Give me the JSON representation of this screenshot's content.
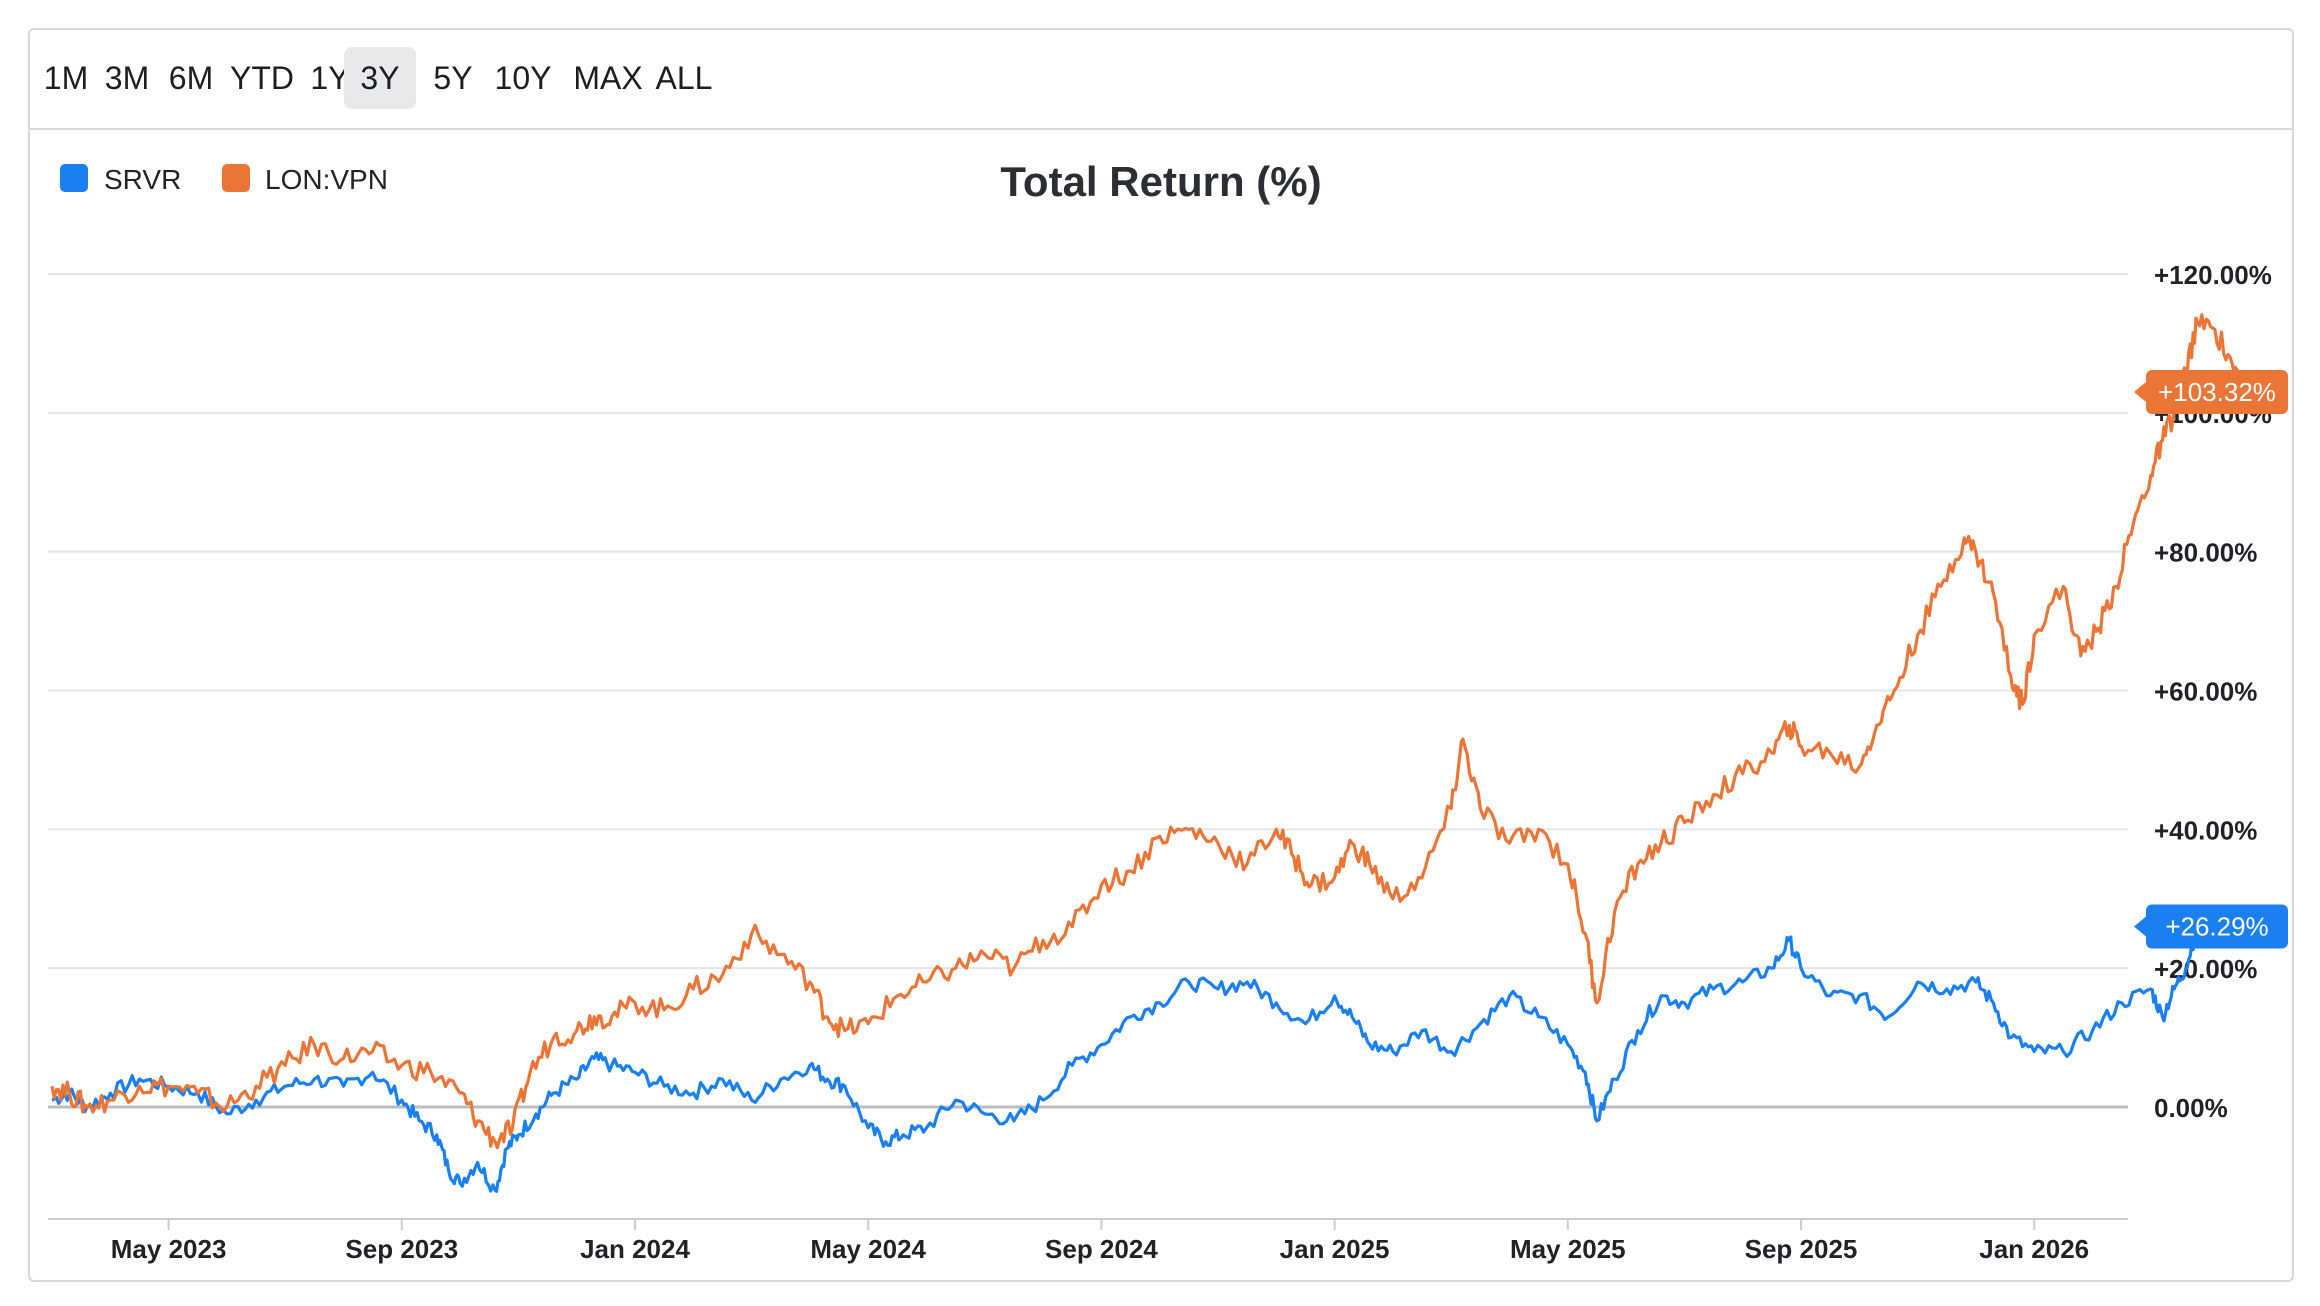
{
  "toolbar": {
    "ranges": [
      "1M",
      "3M",
      "6M",
      "YTD",
      "1Y",
      "3Y",
      "5Y",
      "10Y",
      "MAX",
      "ALL"
    ],
    "selected": "3Y"
  },
  "colors": {
    "srvr": "#1a7ff0",
    "vpn": "#eb7537",
    "grid": "#e3e5e8",
    "zero": "#b9bcc1"
  },
  "chart_data": {
    "type": "line",
    "title": "Total Return (%)",
    "xlabel": "",
    "ylabel": "",
    "ylim": [
      -16,
      122
    ],
    "y_ticks": [
      0,
      20,
      40,
      60,
      80,
      100,
      120
    ],
    "y_tick_labels": [
      "0.00%",
      "+20.00%",
      "+40.00%",
      "+60.00%",
      "+80.00%",
      "+100.00%",
      "+120.00%"
    ],
    "x_tick_labels": [
      "May 2023",
      "Sep 2023",
      "Jan 2024",
      "May 2024",
      "Sep 2024",
      "Jan 2025",
      "May 2025",
      "Sep 2025",
      "Jan 2026"
    ],
    "x_tick_months": [
      2,
      6,
      10,
      14,
      18,
      22,
      26,
      30,
      34
    ],
    "x_range_months": [
      -0.05,
      36.8
    ],
    "legend_position": "top-left",
    "series": [
      {
        "name": "SRVR",
        "color": "#1a7ff0",
        "end_label": "+26.29%",
        "points": [
          [
            0,
            1
          ],
          [
            0.3,
            2
          ],
          [
            0.6,
            0
          ],
          [
            1,
            2
          ],
          [
            1.5,
            4
          ],
          [
            2,
            3
          ],
          [
            2.5,
            2
          ],
          [
            3,
            -1
          ],
          [
            3.5,
            1
          ],
          [
            4,
            3
          ],
          [
            4.5,
            4
          ],
          [
            5,
            3
          ],
          [
            5.5,
            5
          ],
          [
            6,
            1
          ],
          [
            6.3,
            -2
          ],
          [
            6.6,
            -4
          ],
          [
            6.8,
            -9
          ],
          [
            7,
            -11
          ],
          [
            7.3,
            -8
          ],
          [
            7.6,
            -12
          ],
          [
            7.8,
            -6
          ],
          [
            8,
            -4
          ],
          [
            8.3,
            -1
          ],
          [
            8.6,
            2
          ],
          [
            9,
            4
          ],
          [
            9.3,
            7
          ],
          [
            9.6,
            6
          ],
          [
            10,
            5
          ],
          [
            10.5,
            3
          ],
          [
            11,
            2
          ],
          [
            11.5,
            4
          ],
          [
            12,
            1
          ],
          [
            12.5,
            4
          ],
          [
            13,
            6
          ],
          [
            13.3,
            4
          ],
          [
            13.6,
            3
          ],
          [
            14,
            -3
          ],
          [
            14.3,
            -5
          ],
          [
            14.6,
            -4
          ],
          [
            15,
            -3
          ],
          [
            15.5,
            1
          ],
          [
            16,
            -1
          ],
          [
            16.5,
            -2
          ],
          [
            17,
            1
          ],
          [
            17.5,
            6
          ],
          [
            18,
            9
          ],
          [
            18.5,
            13
          ],
          [
            19,
            15
          ],
          [
            19.5,
            18
          ],
          [
            20,
            17
          ],
          [
            20.5,
            18
          ],
          [
            21,
            15
          ],
          [
            21.5,
            12
          ],
          [
            22,
            16
          ],
          [
            22.3,
            13
          ],
          [
            22.6,
            9
          ],
          [
            23,
            8
          ],
          [
            23.5,
            11
          ],
          [
            24,
            8
          ],
          [
            24.5,
            12
          ],
          [
            25,
            16
          ],
          [
            25.5,
            13
          ],
          [
            26,
            9
          ],
          [
            26.3,
            5
          ],
          [
            26.5,
            -2
          ],
          [
            26.8,
            4
          ],
          [
            27.2,
            11
          ],
          [
            27.6,
            16
          ],
          [
            28,
            15
          ],
          [
            28.5,
            17
          ],
          [
            29,
            18
          ],
          [
            29.5,
            20
          ],
          [
            29.8,
            24
          ],
          [
            30,
            20
          ],
          [
            30.5,
            16
          ],
          [
            31,
            16
          ],
          [
            31.5,
            13
          ],
          [
            32,
            18
          ],
          [
            32.5,
            17
          ],
          [
            33,
            18
          ],
          [
            33.3,
            15
          ],
          [
            33.6,
            10
          ],
          [
            34,
            8
          ],
          [
            34.5,
            8
          ],
          [
            35,
            11
          ],
          [
            35.5,
            15
          ],
          [
            36,
            17
          ],
          [
            36.2,
            13
          ],
          [
            36.4,
            17
          ],
          [
            36.6,
            20
          ],
          [
            36.8,
            26
          ]
        ]
      },
      {
        "name": "LON:VPN",
        "color": "#eb7537",
        "end_label": "+103.32%",
        "points": [
          [
            0,
            3
          ],
          [
            0.3,
            2
          ],
          [
            0.6,
            0
          ],
          [
            1,
            1
          ],
          [
            1.5,
            3
          ],
          [
            2,
            3
          ],
          [
            2.5,
            2
          ],
          [
            3,
            0
          ],
          [
            3.5,
            3
          ],
          [
            4,
            6
          ],
          [
            4.5,
            9
          ],
          [
            5,
            7
          ],
          [
            5.5,
            8
          ],
          [
            6,
            6
          ],
          [
            6.5,
            5
          ],
          [
            7,
            2
          ],
          [
            7.3,
            -2
          ],
          [
            7.6,
            -5
          ],
          [
            7.9,
            -3
          ],
          [
            8.2,
            5
          ],
          [
            8.6,
            10
          ],
          [
            9,
            11
          ],
          [
            9.3,
            13
          ],
          [
            9.6,
            13
          ],
          [
            10,
            15
          ],
          [
            10.5,
            14
          ],
          [
            11,
            17
          ],
          [
            11.5,
            19
          ],
          [
            12,
            25
          ],
          [
            12.5,
            22
          ],
          [
            13,
            18
          ],
          [
            13.3,
            13
          ],
          [
            13.6,
            11
          ],
          [
            14,
            12
          ],
          [
            14.5,
            16
          ],
          [
            15,
            18
          ],
          [
            15.5,
            20
          ],
          [
            16,
            22
          ],
          [
            16.5,
            20
          ],
          [
            17,
            24
          ],
          [
            17.5,
            26
          ],
          [
            18,
            32
          ],
          [
            18.5,
            34
          ],
          [
            19,
            39
          ],
          [
            19.5,
            40
          ],
          [
            20,
            38
          ],
          [
            20.5,
            35
          ],
          [
            21,
            40
          ],
          [
            21.3,
            36
          ],
          [
            21.6,
            32
          ],
          [
            22,
            33
          ],
          [
            22.3,
            38
          ],
          [
            22.6,
            35
          ],
          [
            23,
            30
          ],
          [
            23.5,
            33
          ],
          [
            24,
            43
          ],
          [
            24.2,
            53
          ],
          [
            24.5,
            43
          ],
          [
            25,
            38
          ],
          [
            25.5,
            40
          ],
          [
            26,
            35
          ],
          [
            26.3,
            25
          ],
          [
            26.5,
            15
          ],
          [
            26.8,
            28
          ],
          [
            27.2,
            35
          ],
          [
            27.6,
            38
          ],
          [
            28,
            41
          ],
          [
            28.5,
            45
          ],
          [
            29,
            48
          ],
          [
            29.5,
            51
          ],
          [
            29.8,
            55
          ],
          [
            30,
            52
          ],
          [
            30.5,
            51
          ],
          [
            31,
            49
          ],
          [
            31.3,
            55
          ],
          [
            31.6,
            60
          ],
          [
            32,
            68
          ],
          [
            32.4,
            75
          ],
          [
            32.8,
            82
          ],
          [
            33,
            80
          ],
          [
            33.3,
            74
          ],
          [
            33.6,
            62
          ],
          [
            33.8,
            58
          ],
          [
            34,
            68
          ],
          [
            34.5,
            75
          ],
          [
            34.8,
            65
          ],
          [
            35.1,
            69
          ],
          [
            35.4,
            75
          ],
          [
            35.7,
            84
          ],
          [
            36,
            91
          ],
          [
            36.2,
            96
          ],
          [
            36.4,
            100
          ],
          [
            36.6,
            106
          ],
          [
            36.8,
            113
          ],
          [
            37.1,
            112
          ],
          [
            37.4,
            107
          ],
          [
            37.6,
            103
          ]
        ]
      }
    ]
  }
}
